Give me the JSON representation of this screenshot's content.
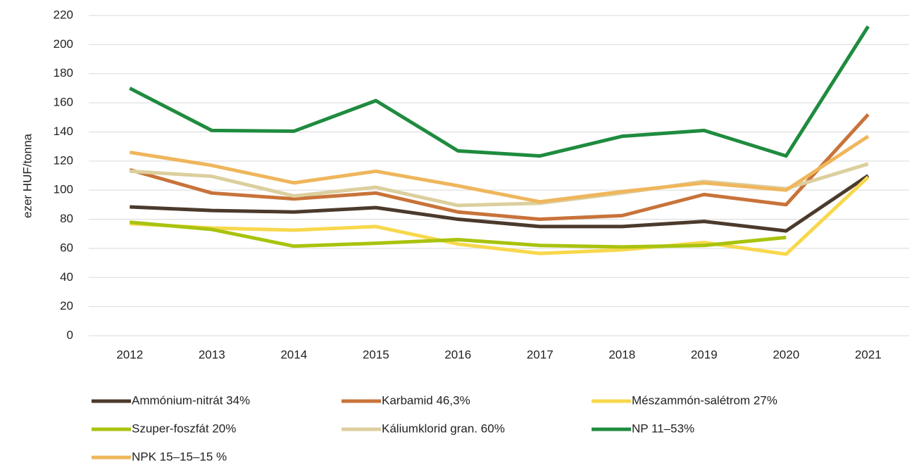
{
  "chart_data": {
    "type": "line",
    "y_label": "ezer HUF/tonna",
    "categories": [
      "2012",
      "2013",
      "2014",
      "2015",
      "2016",
      "2017",
      "2018",
      "2019",
      "2020",
      "2021"
    ],
    "series": [
      {
        "name": "Ammónium-nitrát 34%",
        "color": "#4b3a2c",
        "values": [
          88.5,
          86,
          85,
          88,
          80,
          75,
          75,
          78.5,
          72,
          110
        ]
      },
      {
        "name": "Karbamid 46,3%",
        "color": "#c8733a",
        "values": [
          114,
          98,
          94,
          98,
          85,
          80,
          82.5,
          97,
          90,
          152
        ]
      },
      {
        "name": "Mészammón-salétrom 27%",
        "color": "#f7d84c",
        "values": [
          77,
          74,
          72.5,
          75,
          63,
          56.5,
          59,
          64,
          56,
          109
        ]
      },
      {
        "name": "Szuper-foszfát 20%",
        "color": "#a9c30e",
        "values": [
          78,
          73,
          61.5,
          63.5,
          66,
          62,
          61,
          62,
          67.5,
          null
        ]
      },
      {
        "name": "Káliumklorid gran. 60%",
        "color": "#dccf9e",
        "values": [
          113,
          109.5,
          96,
          102,
          89.5,
          91,
          98,
          106,
          101,
          118
        ]
      },
      {
        "name": "NP 11–53%",
        "color": "#1f8b3f",
        "values": [
          170,
          141,
          140.5,
          161.5,
          127,
          123.5,
          137,
          141,
          123.5,
          212.5
        ]
      },
      {
        "name": "NPK 15–15–15 %",
        "color": "#efb65c",
        "values": [
          126,
          117,
          105,
          113,
          103,
          92,
          99,
          105,
          100,
          137
        ]
      }
    ],
    "ylim": [
      0,
      220
    ],
    "yticks": [
      0,
      20,
      40,
      60,
      80,
      100,
      120,
      140,
      160,
      180,
      200,
      220
    ],
    "grid": true,
    "legend": "bottom"
  }
}
